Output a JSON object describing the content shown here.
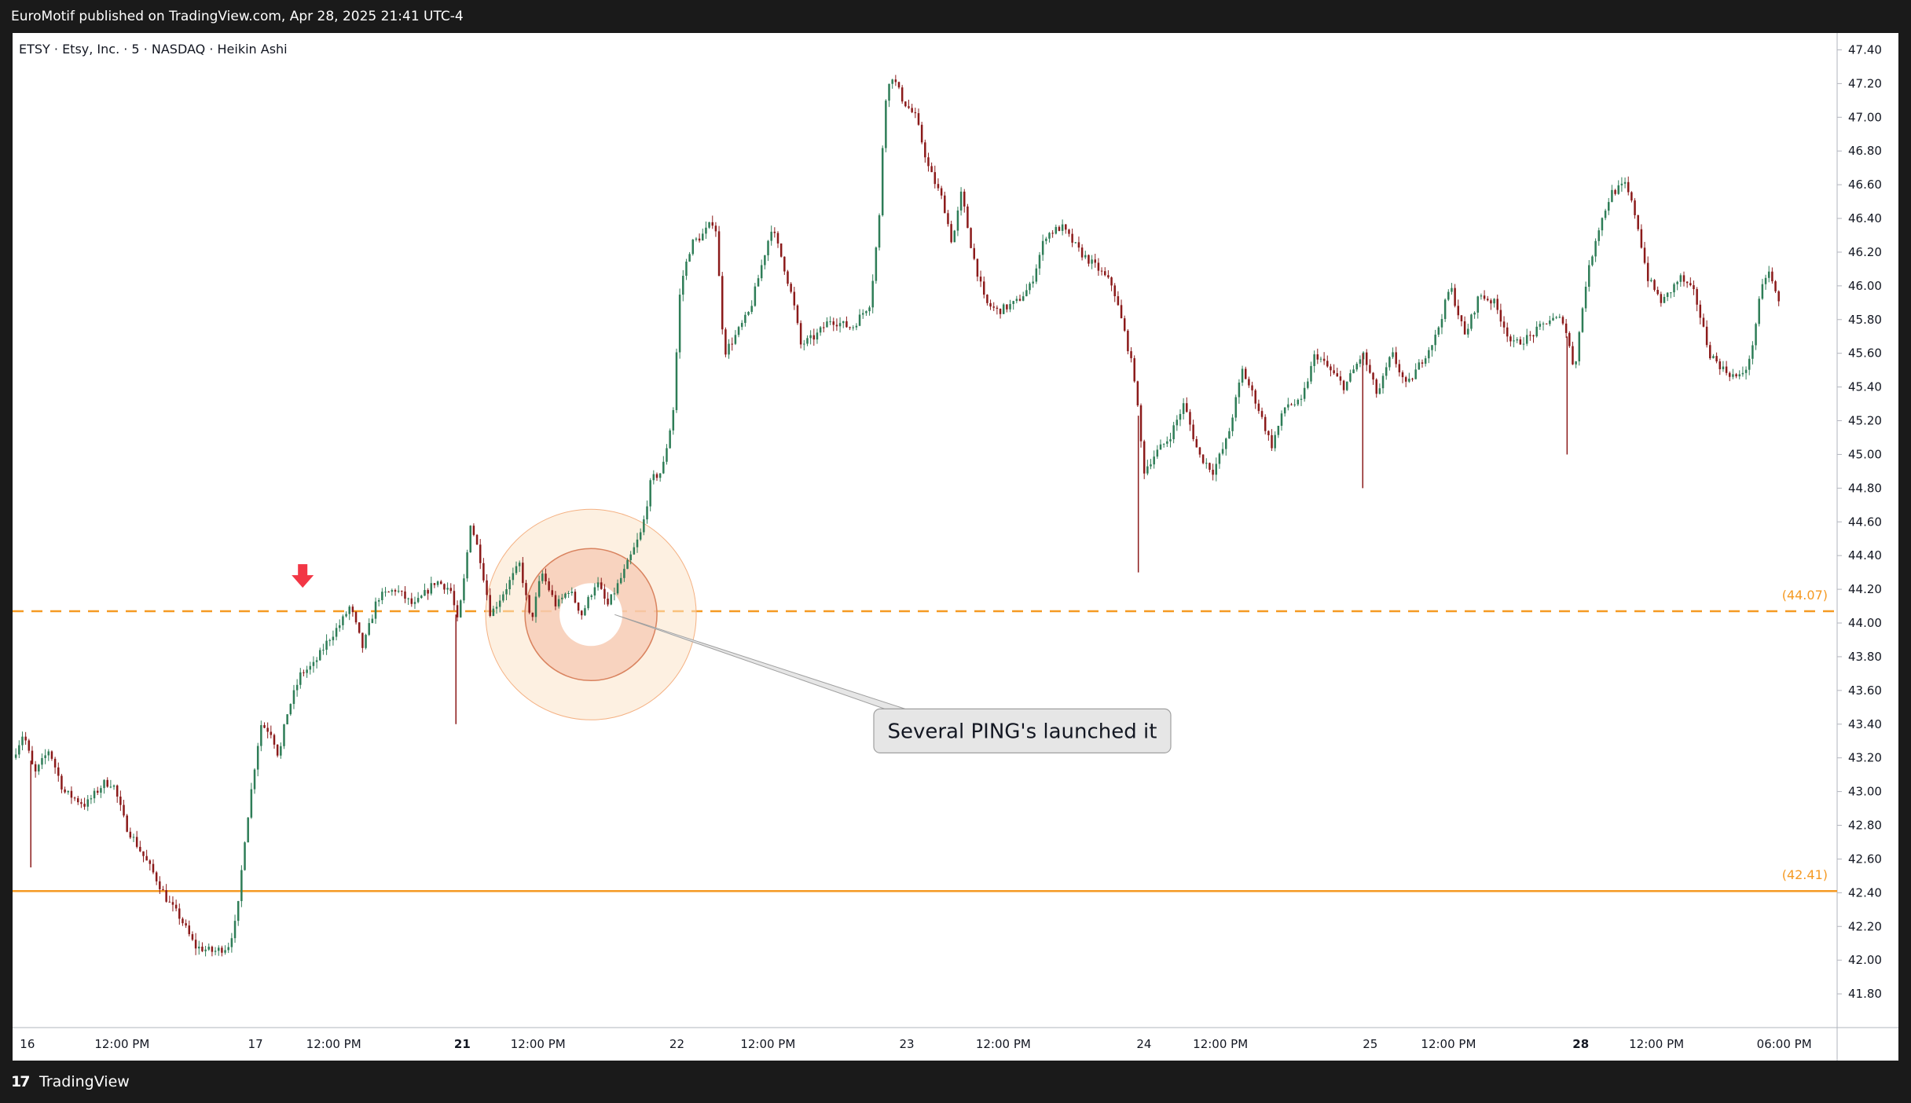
{
  "header": {
    "publisher": "EuroMotif published on TradingView.com, Apr 28, 2025 21:41 UTC-4"
  },
  "footer": {
    "logo_glyph": "17",
    "brand": "TradingView"
  },
  "colors": {
    "up": "#2e7d57",
    "down": "#8b1a1a",
    "level": "#f59a23",
    "arrow": "#f23645",
    "circle_fill": "#fbe3c8",
    "circle_stroke": "#f4b183"
  },
  "chart_data": {
    "type": "candlestick",
    "legend": "ETSY · Etsy, Inc. · 5 · NASDAQ · Heikin Ashi",
    "ylim": [
      41.6,
      47.5
    ],
    "y_ticks": [
      47.4,
      47.2,
      47.0,
      46.8,
      46.6,
      46.4,
      46.2,
      46.0,
      45.8,
      45.6,
      45.4,
      45.2,
      45.0,
      44.8,
      44.6,
      44.4,
      44.2,
      44.0,
      43.8,
      43.6,
      43.4,
      43.2,
      43.0,
      42.8,
      42.6,
      42.4,
      42.2,
      42.0,
      41.8
    ],
    "x_ticks": [
      {
        "label": "16",
        "bold": false,
        "pos": 0.004
      },
      {
        "label": "12:00 PM",
        "bold": false,
        "pos": 0.06
      },
      {
        "label": "17",
        "bold": false,
        "pos": 0.129
      },
      {
        "label": "12:00 PM",
        "bold": false,
        "pos": 0.176
      },
      {
        "label": "21",
        "bold": true,
        "pos": 0.242
      },
      {
        "label": "12:00 PM",
        "bold": false,
        "pos": 0.288
      },
      {
        "label": "22",
        "bold": false,
        "pos": 0.36
      },
      {
        "label": "12:00 PM",
        "bold": false,
        "pos": 0.414
      },
      {
        "label": "23",
        "bold": false,
        "pos": 0.486
      },
      {
        "label": "12:00 PM",
        "bold": false,
        "pos": 0.543
      },
      {
        "label": "24",
        "bold": false,
        "pos": 0.616
      },
      {
        "label": "12:00 PM",
        "bold": false,
        "pos": 0.662
      },
      {
        "label": "25",
        "bold": false,
        "pos": 0.74
      },
      {
        "label": "12:00 PM",
        "bold": false,
        "pos": 0.787
      },
      {
        "label": "28",
        "bold": true,
        "pos": 0.855
      },
      {
        "label": "12:00 PM",
        "bold": false,
        "pos": 0.901
      },
      {
        "label": "06:00 PM",
        "bold": false,
        "pos": 0.971
      }
    ],
    "levels": [
      {
        "value": 44.07,
        "label": "(44.07)",
        "style": "dashed"
      },
      {
        "value": 42.41,
        "label": "(42.41)",
        "style": "solid"
      }
    ],
    "anchors": [
      [
        0.0,
        43.2
      ],
      [
        0.006,
        43.35
      ],
      [
        0.012,
        43.1
      ],
      [
        0.02,
        43.25
      ],
      [
        0.028,
        43.0
      ],
      [
        0.04,
        42.92
      ],
      [
        0.05,
        43.05
      ],
      [
        0.055,
        43.05
      ],
      [
        0.062,
        42.8
      ],
      [
        0.07,
        42.65
      ],
      [
        0.078,
        42.5
      ],
      [
        0.085,
        42.35
      ],
      [
        0.092,
        42.25
      ],
      [
        0.1,
        42.08
      ],
      [
        0.11,
        42.05
      ],
      [
        0.118,
        42.08
      ],
      [
        0.123,
        42.25
      ],
      [
        0.127,
        42.7
      ],
      [
        0.132,
        43.1
      ],
      [
        0.136,
        43.4
      ],
      [
        0.142,
        43.35
      ],
      [
        0.146,
        43.2
      ],
      [
        0.15,
        43.45
      ],
      [
        0.158,
        43.7
      ],
      [
        0.165,
        43.75
      ],
      [
        0.173,
        43.9
      ],
      [
        0.18,
        44.0
      ],
      [
        0.185,
        44.1
      ],
      [
        0.192,
        43.85
      ],
      [
        0.2,
        44.15
      ],
      [
        0.21,
        44.2
      ],
      [
        0.22,
        44.1
      ],
      [
        0.232,
        44.25
      ],
      [
        0.24,
        44.2
      ],
      [
        0.244,
        44.0
      ],
      [
        0.248,
        44.3
      ],
      [
        0.251,
        44.6
      ],
      [
        0.256,
        44.4
      ],
      [
        0.262,
        44.05
      ],
      [
        0.27,
        44.2
      ],
      [
        0.278,
        44.35
      ],
      [
        0.284,
        44.0
      ],
      [
        0.29,
        44.3
      ],
      [
        0.298,
        44.1
      ],
      [
        0.305,
        44.2
      ],
      [
        0.312,
        44.05
      ],
      [
        0.32,
        44.25
      ],
      [
        0.326,
        44.1
      ],
      [
        0.335,
        44.3
      ],
      [
        0.345,
        44.55
      ],
      [
        0.35,
        44.85
      ],
      [
        0.356,
        44.9
      ],
      [
        0.362,
        45.25
      ],
      [
        0.366,
        46.0
      ],
      [
        0.372,
        46.25
      ],
      [
        0.378,
        46.3
      ],
      [
        0.385,
        46.4
      ],
      [
        0.39,
        45.6
      ],
      [
        0.396,
        45.7
      ],
      [
        0.404,
        45.85
      ],
      [
        0.41,
        46.1
      ],
      [
        0.416,
        46.35
      ],
      [
        0.422,
        46.15
      ],
      [
        0.428,
        45.9
      ],
      [
        0.432,
        45.65
      ],
      [
        0.44,
        45.7
      ],
      [
        0.448,
        45.8
      ],
      [
        0.46,
        45.75
      ],
      [
        0.47,
        45.9
      ],
      [
        0.475,
        46.4
      ],
      [
        0.478,
        47.1
      ],
      [
        0.482,
        47.25
      ],
      [
        0.488,
        47.1
      ],
      [
        0.495,
        47.0
      ],
      [
        0.502,
        46.7
      ],
      [
        0.51,
        46.5
      ],
      [
        0.515,
        46.25
      ],
      [
        0.52,
        46.55
      ],
      [
        0.526,
        46.2
      ],
      [
        0.533,
        45.9
      ],
      [
        0.54,
        45.85
      ],
      [
        0.55,
        45.9
      ],
      [
        0.558,
        46.0
      ],
      [
        0.566,
        46.3
      ],
      [
        0.575,
        46.35
      ],
      [
        0.585,
        46.2
      ],
      [
        0.595,
        46.1
      ],
      [
        0.603,
        46.0
      ],
      [
        0.61,
        45.7
      ],
      [
        0.615,
        45.45
      ],
      [
        0.62,
        44.9
      ],
      [
        0.626,
        45.0
      ],
      [
        0.634,
        45.1
      ],
      [
        0.642,
        45.3
      ],
      [
        0.65,
        45.0
      ],
      [
        0.658,
        44.9
      ],
      [
        0.666,
        45.1
      ],
      [
        0.674,
        45.5
      ],
      [
        0.682,
        45.3
      ],
      [
        0.69,
        45.05
      ],
      [
        0.698,
        45.3
      ],
      [
        0.706,
        45.3
      ],
      [
        0.714,
        45.6
      ],
      [
        0.722,
        45.5
      ],
      [
        0.73,
        45.4
      ],
      [
        0.74,
        45.6
      ],
      [
        0.748,
        45.35
      ],
      [
        0.756,
        45.6
      ],
      [
        0.764,
        45.4
      ],
      [
        0.772,
        45.55
      ],
      [
        0.78,
        45.7
      ],
      [
        0.788,
        46.0
      ],
      [
        0.796,
        45.7
      ],
      [
        0.804,
        45.95
      ],
      [
        0.812,
        45.9
      ],
      [
        0.822,
        45.65
      ],
      [
        0.832,
        45.7
      ],
      [
        0.842,
        45.8
      ],
      [
        0.85,
        45.8
      ],
      [
        0.856,
        45.5
      ],
      [
        0.862,
        46.0
      ],
      [
        0.868,
        46.3
      ],
      [
        0.876,
        46.55
      ],
      [
        0.884,
        46.6
      ],
      [
        0.89,
        46.4
      ],
      [
        0.896,
        46.05
      ],
      [
        0.904,
        45.9
      ],
      [
        0.914,
        46.05
      ],
      [
        0.922,
        45.95
      ],
      [
        0.93,
        45.6
      ],
      [
        0.938,
        45.5
      ],
      [
        0.946,
        45.45
      ],
      [
        0.952,
        45.55
      ],
      [
        0.958,
        45.95
      ],
      [
        0.962,
        46.1
      ],
      [
        0.968,
        45.9
      ]
    ],
    "wicks": [
      {
        "pos": 0.01,
        "low": 42.55
      },
      {
        "pos": 0.243,
        "low": 43.4
      },
      {
        "pos": 0.617,
        "low": 44.3
      },
      {
        "pos": 0.74,
        "low": 44.8
      },
      {
        "pos": 0.852,
        "low": 45.0
      }
    ],
    "annotations": {
      "arrow": {
        "pos": 0.159,
        "value": 44.2
      },
      "circle": {
        "pos": 0.317,
        "value": 44.05
      },
      "callout": {
        "text": "Several PING's launched it",
        "pos_from": 0.33,
        "value_from": 44.05,
        "pos_to": 0.472,
        "value_to": 43.36
      }
    }
  }
}
